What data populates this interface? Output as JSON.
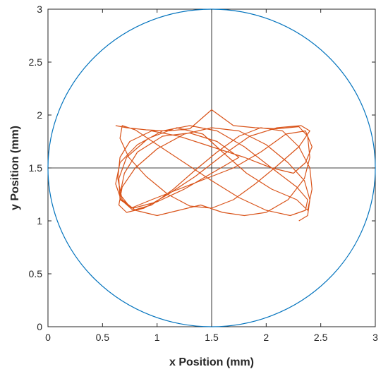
{
  "chart_data": {
    "type": "line",
    "title": "",
    "xlabel": "x Position (mm)",
    "ylabel": "y Position (mm)",
    "xlim": [
      0,
      3
    ],
    "ylim": [
      0,
      3
    ],
    "x_ticks": [
      0,
      0.5,
      1,
      1.5,
      2,
      2.5,
      3
    ],
    "y_ticks": [
      0,
      0.5,
      1,
      1.5,
      2,
      2.5,
      3
    ],
    "x_tick_labels": [
      "0",
      "0.5",
      "1",
      "1.5",
      "2",
      "2.5",
      "3"
    ],
    "y_tick_labels": [
      "0",
      "0.5",
      "1",
      "1.5",
      "2",
      "2.5",
      "3"
    ],
    "grid": false,
    "legend": "none",
    "crosshair": {
      "x": 1.5,
      "y": 1.5,
      "color": "#000000"
    },
    "boundary_circle": {
      "center": [
        1.5,
        1.5
      ],
      "radius": 1.5,
      "color": "#0072BD"
    },
    "series": [
      {
        "color": "#D95319",
        "x": [
          0.62,
          0.72,
          0.9,
          1.1,
          1.3,
          1.5,
          1.7,
          1.9,
          2.1,
          2.3,
          2.38,
          2.4,
          2.35,
          2.2,
          2.0,
          1.8,
          1.6,
          1.4,
          1.2,
          1.0,
          0.8,
          0.68,
          0.64,
          0.66,
          0.75,
          0.95,
          1.2,
          1.5,
          1.8,
          2.05,
          2.25,
          2.36,
          2.42,
          2.36,
          2.18,
          1.95,
          1.7,
          1.45,
          1.2,
          0.95,
          0.76,
          0.66,
          0.7,
          0.82,
          1.05,
          1.3,
          1.55,
          1.75,
          1.5,
          1.25,
          1.0,
          0.78,
          0.66,
          0.65,
          0.72,
          0.92,
          1.18,
          1.42,
          1.6,
          1.82,
          2.05,
          2.28,
          2.38,
          2.42,
          2.4,
          2.3,
          2.15,
          1.95,
          1.75,
          1.55,
          1.35,
          1.15,
          0.95,
          0.78,
          0.67,
          0.62,
          0.66,
          0.82,
          1.05,
          1.3,
          1.55,
          1.8,
          2.05,
          2.28,
          2.38,
          2.36,
          2.22,
          2.0,
          1.75,
          1.5,
          1.25,
          1.0,
          0.8,
          0.68,
          0.66,
          0.74,
          0.9,
          1.1,
          1.3,
          1.5,
          1.7,
          1.9,
          2.1,
          2.3,
          2.4,
          2.32,
          2.1,
          1.85,
          1.6,
          1.35,
          1.1,
          0.88,
          0.72,
          0.65,
          0.68,
          0.8,
          1.0,
          1.25,
          1.5,
          1.75,
          2.0,
          2.2,
          2.35,
          2.4,
          2.38,
          2.3
        ],
        "y": [
          1.9,
          1.88,
          1.86,
          1.85,
          1.87,
          2.05,
          1.9,
          1.88,
          1.87,
          1.89,
          1.8,
          1.6,
          1.4,
          1.2,
          1.08,
          1.05,
          1.08,
          1.15,
          1.1,
          1.05,
          1.1,
          1.2,
          1.4,
          1.6,
          1.75,
          1.85,
          1.8,
          1.7,
          1.6,
          1.5,
          1.45,
          1.55,
          1.7,
          1.85,
          1.82,
          1.65,
          1.5,
          1.4,
          1.3,
          1.2,
          1.12,
          1.25,
          1.45,
          1.65,
          1.8,
          1.83,
          1.75,
          1.6,
          1.45,
          1.3,
          1.18,
          1.12,
          1.2,
          1.4,
          1.6,
          1.78,
          1.88,
          1.82,
          1.65,
          1.45,
          1.3,
          1.2,
          1.1,
          1.3,
          1.5,
          1.7,
          1.85,
          1.88,
          1.8,
          1.65,
          1.48,
          1.3,
          1.15,
          1.1,
          1.2,
          1.35,
          1.55,
          1.72,
          1.85,
          1.9,
          1.85,
          1.7,
          1.5,
          1.32,
          1.2,
          1.1,
          1.05,
          1.1,
          1.22,
          1.38,
          1.55,
          1.72,
          1.86,
          1.9,
          1.78,
          1.6,
          1.42,
          1.25,
          1.14,
          1.12,
          1.2,
          1.35,
          1.52,
          1.7,
          1.85,
          1.9,
          1.88,
          1.8,
          1.62,
          1.42,
          1.25,
          1.12,
          1.08,
          1.15,
          1.32,
          1.5,
          1.68,
          1.82,
          1.88,
          1.85,
          1.72,
          1.55,
          1.38,
          1.2,
          1.05,
          1.0
        ]
      }
    ]
  }
}
